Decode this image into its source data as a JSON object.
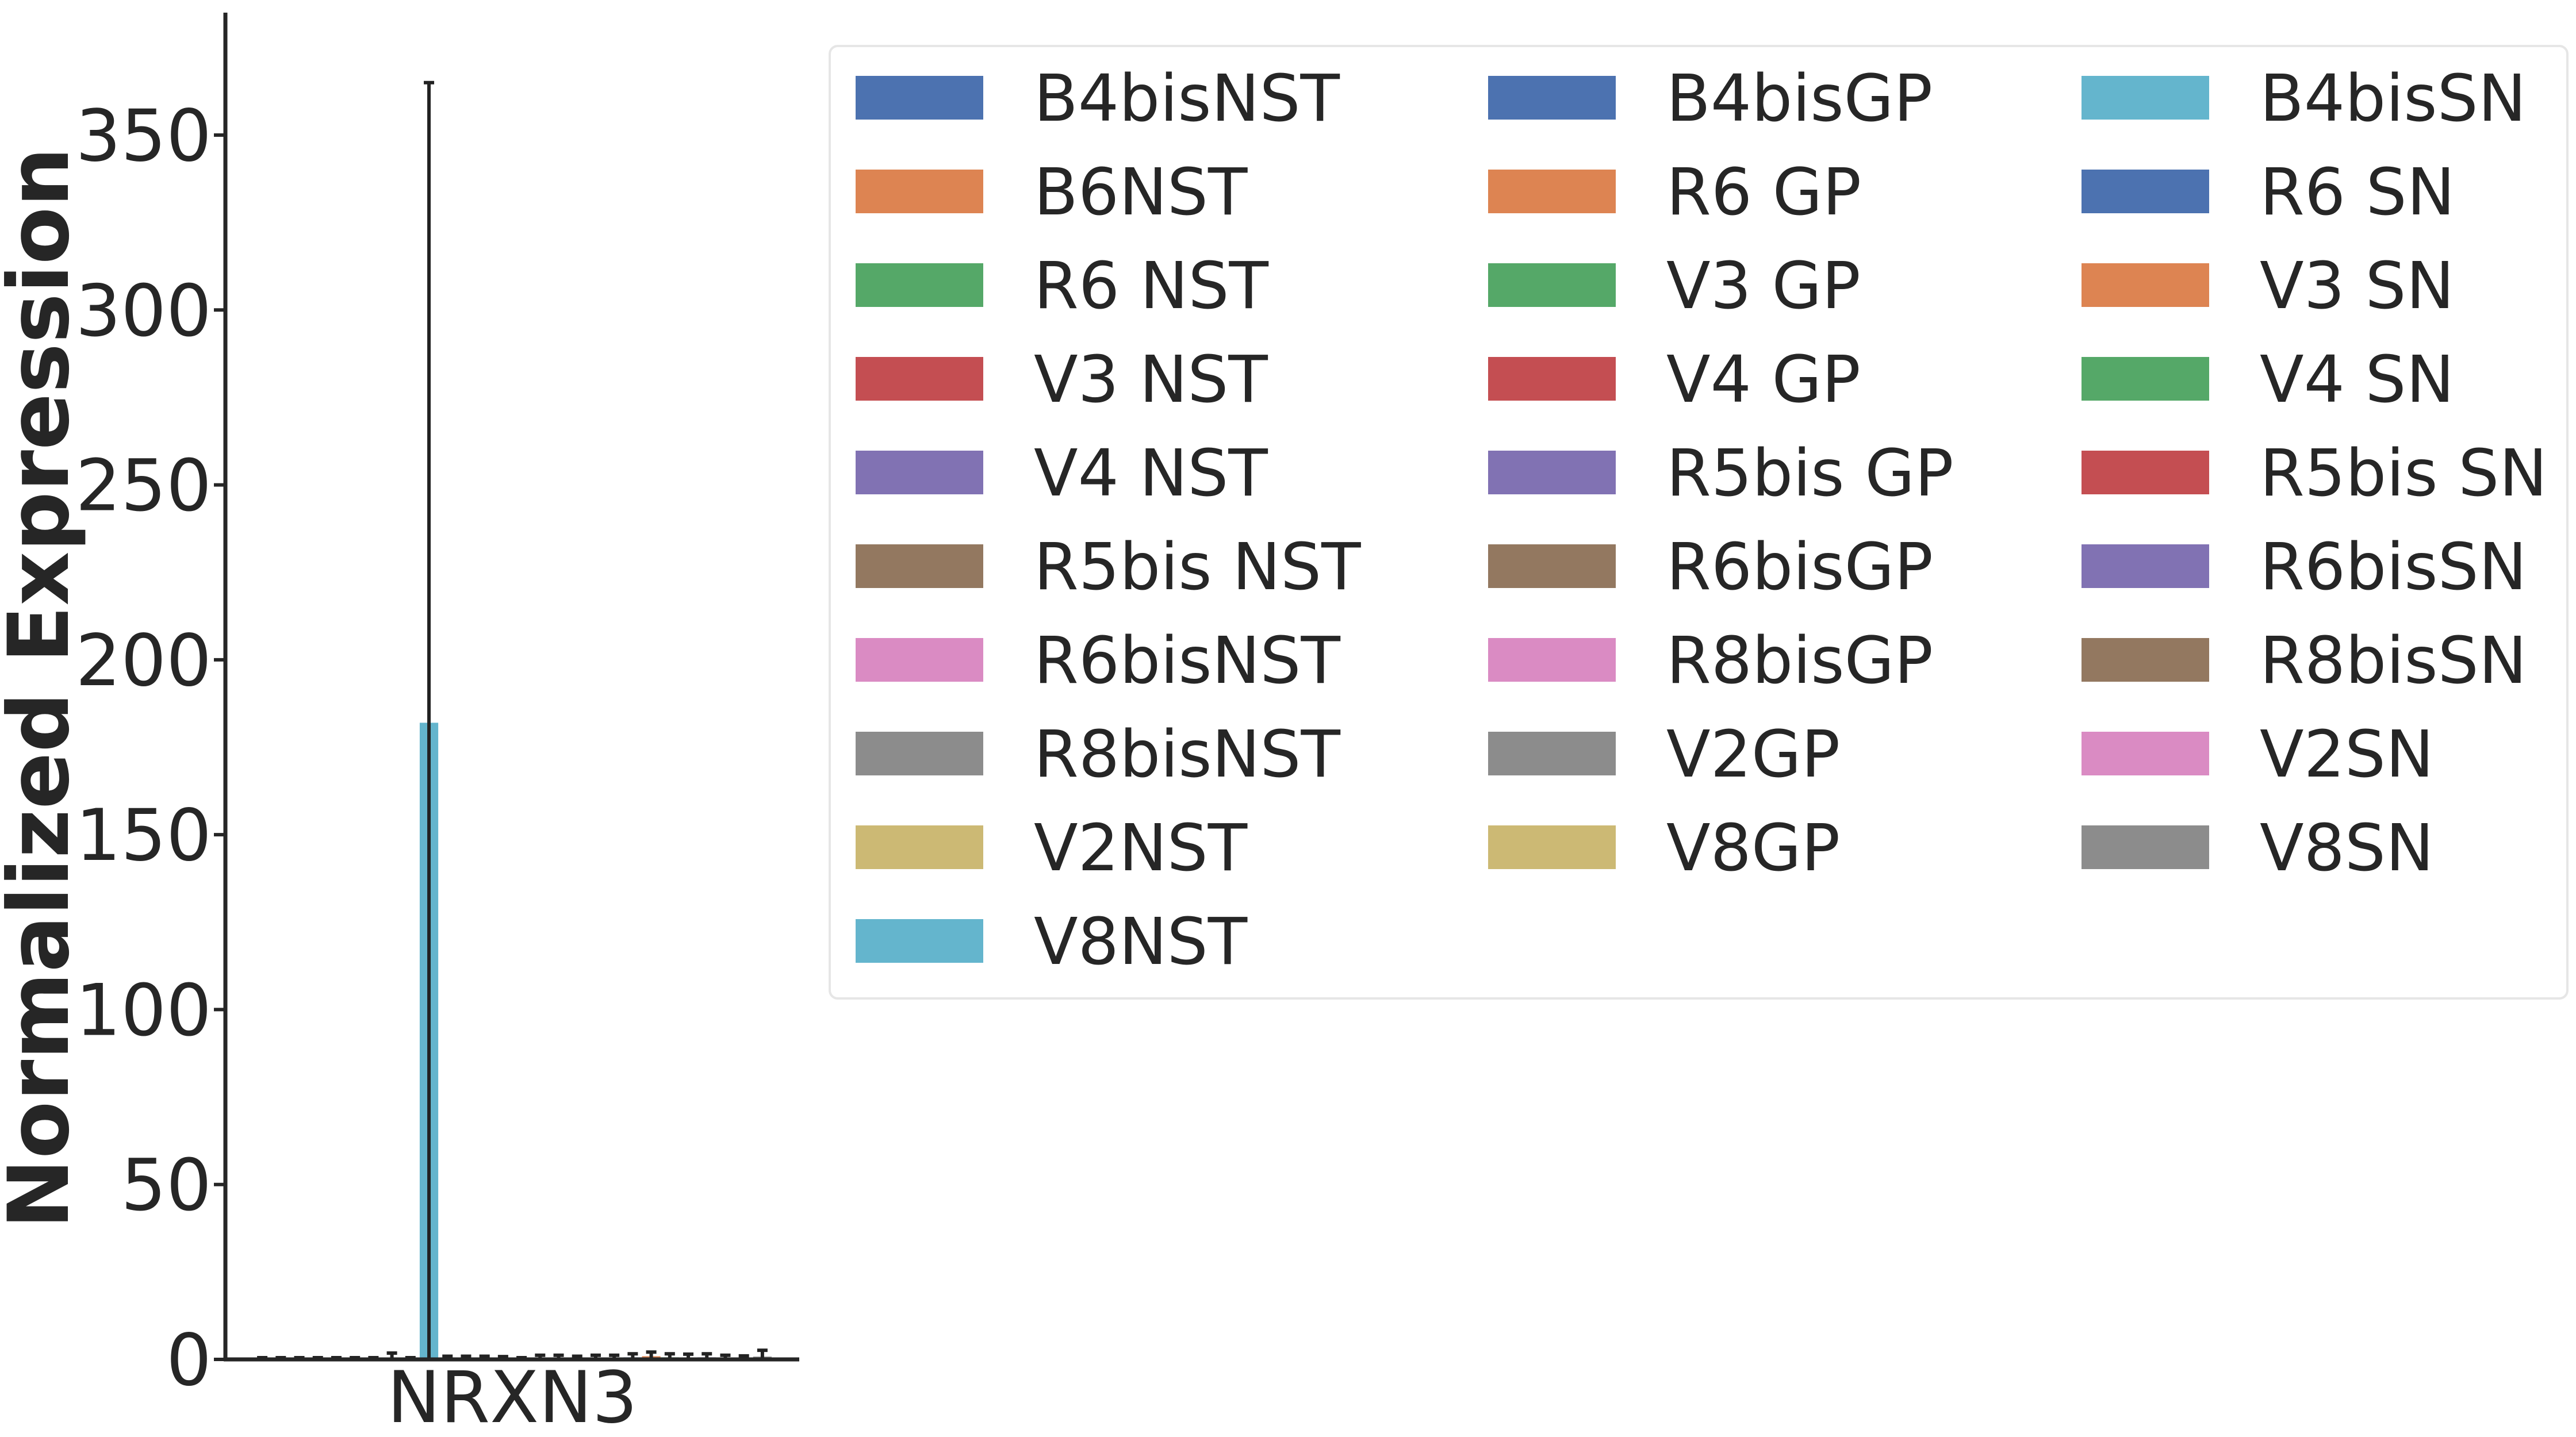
{
  "chart_data": {
    "type": "bar",
    "title": "",
    "xlabel": "",
    "ylabel": "Normalized Expression",
    "categories": [
      "NRXN3"
    ],
    "ylim": [
      0,
      385
    ],
    "yticks": [
      0,
      50,
      100,
      150,
      200,
      250,
      300,
      350
    ],
    "grid": false,
    "legend_position": "top-right",
    "legend_columns": 3,
    "series": [
      {
        "name": "B4bisNST",
        "color": "#4c72b0",
        "value": 0.2,
        "error": 0.3
      },
      {
        "name": "B6NST",
        "color": "#dd8452",
        "value": 0.2,
        "error": 0.3
      },
      {
        "name": "R6 NST",
        "color": "#55a868",
        "value": 0.2,
        "error": 0.3
      },
      {
        "name": "V3 NST",
        "color": "#c44e52",
        "value": 0.2,
        "error": 0.3
      },
      {
        "name": "V4 NST",
        "color": "#8172b3",
        "value": 0.2,
        "error": 0.3
      },
      {
        "name": "R5bis NST",
        "color": "#937860",
        "value": 0.2,
        "error": 0.3
      },
      {
        "name": "R6bisNST",
        "color": "#da8bc3",
        "value": 0.2,
        "error": 0.3
      },
      {
        "name": "R8bisNST",
        "color": "#8c8c8c",
        "value": 0.3,
        "error": 1.5
      },
      {
        "name": "V2NST",
        "color": "#ccb974",
        "value": 0.2,
        "error": 0.3
      },
      {
        "name": "V8NST",
        "color": "#64b5cd",
        "value": 182,
        "error": 183
      },
      {
        "name": "B4bisGP",
        "color": "#4c72b0",
        "value": 0.3,
        "error": 0.6
      },
      {
        "name": "R6 GP",
        "color": "#dd8452",
        "value": 0.3,
        "error": 0.6
      },
      {
        "name": "V3 GP",
        "color": "#55a868",
        "value": 0.3,
        "error": 0.6
      },
      {
        "name": "V4 GP",
        "color": "#c44e52",
        "value": 0.3,
        "error": 0.5
      },
      {
        "name": "R5bis GP",
        "color": "#8172b3",
        "value": 0.2,
        "error": 0.3
      },
      {
        "name": "R6bisGP",
        "color": "#937860",
        "value": 0.4,
        "error": 0.8
      },
      {
        "name": "R8bisGP",
        "color": "#da8bc3",
        "value": 0.4,
        "error": 0.8
      },
      {
        "name": "V2GP",
        "color": "#8c8c8c",
        "value": 0.3,
        "error": 0.6
      },
      {
        "name": "V8GP",
        "color": "#ccb974",
        "value": 0.4,
        "error": 0.8
      },
      {
        "name": "B4bisSN",
        "color": "#64b5cd",
        "value": 0.4,
        "error": 0.8
      },
      {
        "name": "R6 SN",
        "color": "#4c72b0",
        "value": 0.6,
        "error": 1.0
      },
      {
        "name": "V3 SN",
        "color": "#dd8452",
        "value": 0.9,
        "error": 1.2
      },
      {
        "name": "V4 SN",
        "color": "#55a868",
        "value": 0.6,
        "error": 1.0
      },
      {
        "name": "R5bis SN",
        "color": "#c44e52",
        "value": 0.5,
        "error": 1.0
      },
      {
        "name": "R6bisSN",
        "color": "#8172b3",
        "value": 0.6,
        "error": 1.0
      },
      {
        "name": "R8bisSN",
        "color": "#937860",
        "value": 0.4,
        "error": 0.8
      },
      {
        "name": "V2SN",
        "color": "#da8bc3",
        "value": 0.4,
        "error": 0.6
      },
      {
        "name": "V8SN",
        "color": "#8c8c8c",
        "value": 0.8,
        "error": 1.8
      }
    ]
  }
}
